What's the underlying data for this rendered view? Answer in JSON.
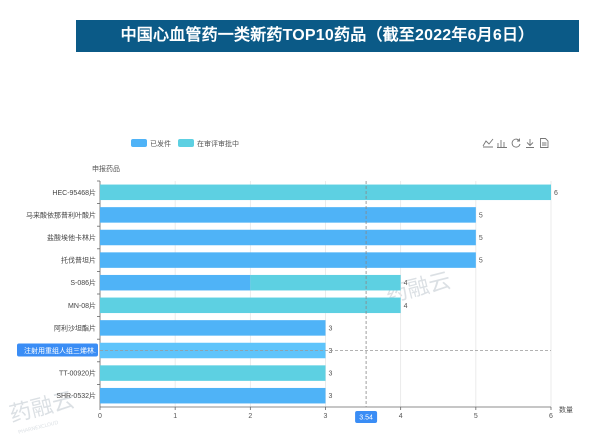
{
  "title": "中国心血管药一类新药TOP10药品（截至2022年6月6日）",
  "watermark": "药融云",
  "watermark_sub": "PHARNEXCLOUD",
  "colors": {
    "title_bg": "#0b5a87",
    "approved": "#4fb3f7",
    "reviewing": "#5dd0e2",
    "axis": "#666666",
    "highlight_bg": "#3a8df5"
  },
  "toolbox": [
    "line-chart-icon",
    "bar-chart-icon",
    "refresh-icon",
    "download-icon",
    "data-view-icon"
  ],
  "tooltip_value": "3.54",
  "chart_data": {
    "type": "bar",
    "orientation": "horizontal",
    "stacked": true,
    "ylabel": "申报药品",
    "xlabel": "数量",
    "xlim": [
      0,
      6
    ],
    "xticks": [
      "0",
      "1",
      "2",
      "3",
      "4",
      "5",
      "6"
    ],
    "legend_position": "top-left",
    "categories": [
      "HEC-95468片",
      "马来酸依那普利叶酸片",
      "盐酸埃他卡林片",
      "托伐普坦片",
      "S-086片",
      "MN-08片",
      "阿利沙坦酯片",
      "注射用重组人组三烯林.",
      "TT-00920片",
      "SHR-0532片"
    ],
    "highlight_category": "注射用重组人组三烯林.",
    "series": [
      {
        "name": "已发件",
        "values": [
          0,
          5,
          5,
          5,
          2,
          0,
          3,
          3,
          0,
          3
        ]
      },
      {
        "name": "在审评审批中",
        "values": [
          6,
          0,
          0,
          0,
          2,
          4,
          0,
          0,
          3,
          0
        ]
      }
    ],
    "totals": [
      "6",
      "5",
      "5",
      "5",
      "4",
      "4",
      "3",
      "3",
      "3",
      "3"
    ]
  }
}
